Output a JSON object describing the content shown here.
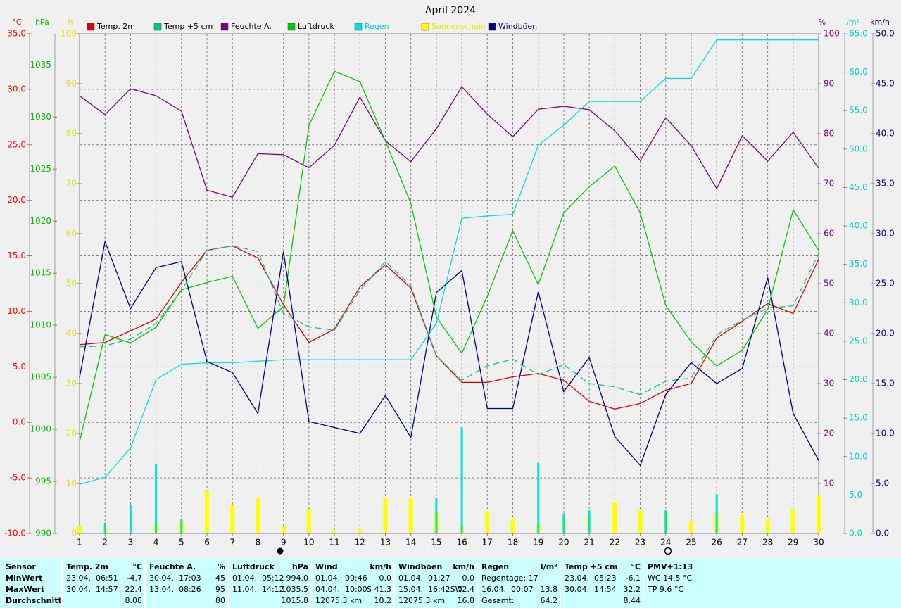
{
  "chart_data": {
    "type": "line",
    "title": "April 2024",
    "x": [
      1,
      2,
      3,
      4,
      5,
      6,
      7,
      8,
      9,
      10,
      11,
      12,
      13,
      14,
      15,
      16,
      17,
      18,
      19,
      20,
      21,
      22,
      23,
      24,
      25,
      26,
      27,
      28,
      29,
      30
    ],
    "xlim": [
      1,
      30
    ],
    "grid": true,
    "axes": [
      {
        "unit": "°C",
        "color": "#ff0000",
        "side": "left",
        "ylim": [
          -10,
          35
        ],
        "yticks": [
          {
            "value": -10,
            "label": "-10.0"
          },
          {
            "value": -5,
            "label": "-5.0"
          },
          {
            "value": 0,
            "label": "0.0"
          },
          {
            "value": 5,
            "label": "5.0"
          },
          {
            "value": 10,
            "label": "10.0"
          },
          {
            "value": 15,
            "label": "15.0"
          },
          {
            "value": 20,
            "label": "20.0"
          },
          {
            "value": 25,
            "label": "25.0"
          },
          {
            "value": 30,
            "label": "30.0"
          },
          {
            "value": 35,
            "label": "35.0"
          }
        ]
      },
      {
        "unit": "hPa",
        "color": "#00c000",
        "side": "left",
        "ylim": [
          990,
          1038
        ],
        "yticks": [
          990,
          995,
          1000,
          1005,
          1010,
          1015,
          1020,
          1025,
          1030,
          1035
        ]
      },
      {
        "unit": "h",
        "color": "#e0e000",
        "side": "left",
        "ylim": [
          0,
          100
        ],
        "yticks": [
          0,
          10,
          20,
          30,
          40,
          50,
          60,
          70,
          80,
          90,
          100
        ]
      },
      {
        "unit": "%",
        "color": "#800080",
        "side": "right",
        "ylim": [
          0,
          100
        ],
        "yticks": [
          10,
          20,
          30,
          40,
          50,
          60,
          70,
          80,
          90,
          100
        ]
      },
      {
        "unit": "l/m²",
        "color": "#00d0d0",
        "side": "right",
        "ylim": [
          0,
          65
        ],
        "yticks": [
          {
            "value": 0,
            "label": "0.0"
          },
          {
            "value": 5,
            "label": "5.0"
          },
          {
            "value": 10,
            "label": "10.0"
          },
          {
            "value": 15,
            "label": "15.0"
          },
          {
            "value": 20,
            "label": "20.0"
          },
          {
            "value": 25,
            "label": "25.0"
          },
          {
            "value": 30,
            "label": "30.0"
          },
          {
            "value": 35,
            "label": "35.0"
          },
          {
            "value": 40,
            "label": "40.0"
          },
          {
            "value": 45,
            "label": "45.0"
          },
          {
            "value": 50,
            "label": "50.0"
          },
          {
            "value": 55,
            "label": "55.0"
          },
          {
            "value": 60,
            "label": "60.0"
          },
          {
            "value": 65,
            "label": "65.0"
          }
        ]
      },
      {
        "unit": "km/h",
        "color": "#000080",
        "side": "right",
        "ylim": [
          0,
          50
        ],
        "yticks": [
          {
            "value": 0,
            "label": "0.0"
          },
          {
            "value": 5,
            "label": "5.0"
          },
          {
            "value": 10,
            "label": "10.0"
          },
          {
            "value": 15,
            "label": "15.0"
          },
          {
            "value": 20,
            "label": "20.0"
          },
          {
            "value": 25,
            "label": "25.0"
          },
          {
            "value": 30,
            "label": "30.0"
          },
          {
            "value": 35,
            "label": "35.0"
          },
          {
            "value": 40,
            "label": "40.0"
          },
          {
            "value": 45,
            "label": "45.0"
          },
          {
            "value": 50,
            "label": "50.0"
          }
        ]
      }
    ],
    "series": [
      {
        "name": "Temp. 2m",
        "color": "#dd0000",
        "text_color": "#000000",
        "axis": "°C",
        "mark": "line",
        "values": [
          7.0,
          7.2,
          8.25,
          9.3,
          12.6,
          15.5,
          15.9,
          14.8,
          10.6,
          7.2,
          8.4,
          12.2,
          14.2,
          12.1,
          6.0,
          3.6,
          3.6,
          4.1,
          4.4,
          3.8,
          1.9,
          1.2,
          1.7,
          2.9,
          3.5,
          7.6,
          9.1,
          10.7,
          9.8,
          14.7
        ]
      },
      {
        "name": "Temp +5 cm",
        "color": "#00c890",
        "text_color": "#000000",
        "axis": "°C",
        "mark": "line",
        "dashed": true,
        "values": [
          6.8,
          6.9,
          7.5,
          8.9,
          11.9,
          15.5,
          15.9,
          15.4,
          9.8,
          8.6,
          8.3,
          11.9,
          14.5,
          12.3,
          6.0,
          3.8,
          5.1,
          5.7,
          4.3,
          5.2,
          3.5,
          3.2,
          2.5,
          3.7,
          4.0,
          7.9,
          9.2,
          10.3,
          10.5,
          15.2
        ]
      },
      {
        "name": "Feuchte A.",
        "color": "#800080",
        "text_color": "#000000",
        "axis": "%",
        "mark": "line",
        "values": [
          87.6,
          83.8,
          89,
          87.6,
          84.5,
          68.7,
          67.3,
          76,
          75.8,
          73.2,
          77.7,
          87.3,
          78.6,
          74.4,
          81,
          89.4,
          83.9,
          79.4,
          84.9,
          85.5,
          84.8,
          80.6,
          74.6,
          83.2,
          77.6,
          69,
          79.6,
          74.5,
          80.3,
          73.1
        ]
      },
      {
        "name": "Luftdruck",
        "color": "#00cc00",
        "text_color": "#000000",
        "axis": "hPa",
        "mark": "line",
        "values": [
          998.8,
          1009.1,
          1008.3,
          1009.8,
          1013.4,
          1014.1,
          1014.7,
          1009.7,
          1011.8,
          1029.2,
          1034.4,
          1033.4,
          1027.7,
          1021.7,
          1010.8,
          1007.3,
          1012.8,
          1019.1,
          1013.9,
          1020.8,
          1023.3,
          1025.3,
          1020.8,
          1011.9,
          1008.4,
          1006.1,
          1007.6,
          1011.5,
          1021.1,
          1017.2
        ]
      },
      {
        "name": "Regen",
        "color": "#00e0e0",
        "text_color": "#00d0d0",
        "axis": "l/m²",
        "mark": "line",
        "values": [
          6.4,
          7.3,
          11.1,
          20,
          22,
          22.2,
          22.2,
          22.4,
          22.6,
          22.6,
          22.6,
          22.6,
          22.6,
          22.6,
          27.3,
          41,
          41.3,
          41.5,
          50.5,
          53.1,
          56.2,
          56.2,
          56.2,
          59.2,
          59.2,
          64.2,
          64.2,
          64.2,
          64.2,
          64.2
        ]
      },
      {
        "name": "Sonnenschein",
        "color": "#ffff00",
        "text_color": "#e8e800",
        "axis": "h",
        "mark": "bar",
        "values": [
          1.4,
          1.0,
          0,
          1.8,
          2.5,
          8.5,
          5.8,
          7.2,
          1.4,
          4.8,
          0.7,
          0.8,
          7.2,
          7.2,
          4.1,
          1.5,
          4.5,
          3.0,
          1.8,
          3.0,
          3.9,
          6.3,
          4.6,
          4.4,
          2.5,
          4.1,
          3.7,
          3.0,
          4.9,
          7.5
        ]
      },
      {
        "name": "Windböen",
        "color": "#000080",
        "text_color": "#000080",
        "axis": "km/h",
        "mark": "line",
        "values": [
          15.6,
          29.2,
          22.5,
          26.6,
          27.2,
          17.2,
          16.1,
          12.0,
          28.2,
          11.2,
          10.6,
          10.0,
          13.8,
          9.6,
          24.1,
          26.3,
          12.5,
          12.5,
          24.2,
          14.2,
          17.6,
          9.7,
          6.8,
          13.9,
          17.1,
          15.0,
          16.5,
          25.6,
          12.0,
          7.3
        ]
      },
      {
        "color": "#00e0e0",
        "axis": "l/m²",
        "mark": "bar",
        "values": [
          0,
          1.4,
          3.7,
          9.0,
          1.9,
          0,
          0,
          0,
          0,
          0,
          0,
          0,
          0,
          0,
          4.6,
          13.8,
          0,
          0,
          9.2,
          2.6,
          3.0,
          0,
          0,
          3.0,
          0,
          5.1,
          0,
          0,
          0,
          0
        ]
      }
    ]
  },
  "stats": {
    "sensor": [
      "Sensor",
      "MinWert",
      "MaxWert",
      "Durchschnitt"
    ],
    "columns": [
      {
        "title": "Temp. 2m",
        "unit": "°C",
        "rows": [
          {
            "left": "23.04.  06:51",
            "right": "-4.7"
          },
          {
            "left": "30.04.  14:57",
            "right": "22.4"
          },
          {
            "right": "8.08"
          }
        ]
      },
      {
        "title": "Feuchte A.",
        "unit": "%",
        "rows": [
          {
            "left": "30.04.  17:03",
            "right": "45"
          },
          {
            "left": "13.04.  08:26",
            "right": "95"
          },
          {
            "right": "80"
          }
        ]
      },
      {
        "title": "Luftdruck",
        "unit": "hPa",
        "rows": [
          {
            "left": "01.04.  05:12",
            "right": "994.0"
          },
          {
            "left": "11.04.  14:12",
            "right": "1035.5"
          },
          {
            "right": "1015.8"
          }
        ]
      },
      {
        "title": "Wind",
        "unit": "km/h",
        "rows": [
          {
            "left": "01.04.  00:46",
            "right": "0.0"
          },
          {
            "left": "04.04.  10:00",
            "right": "S 41.3"
          },
          {
            "left": "12075.3 km",
            "right": "10.2"
          }
        ]
      },
      {
        "title": "Windböen",
        "unit": "km/h",
        "rows": [
          {
            "left": "01.04.  01:27",
            "right": "0.0"
          },
          {
            "left": "15.04.  16:42SW",
            "right": "72.4"
          },
          {
            "left": "12075.3 km",
            "right": "16.8"
          }
        ]
      },
      {
        "title": "Regen",
        "unit": "l/m²",
        "rows": [
          {
            "left": "Regentage: 17"
          },
          {
            "left": "16.04.  00:07",
            "right": "13.8"
          },
          {
            "left": "Gesamt:",
            "right": "64.2"
          }
        ]
      },
      {
        "title": "Temp +5 cm",
        "unit": "°C",
        "rows": [
          {
            "left": "23.04.  05:23",
            "right": "-6.1"
          },
          {
            "left": "30.04.  14:54",
            "right": "32.2"
          },
          {
            "right": "8.44"
          }
        ]
      },
      {
        "title": "PMV+1:13",
        "rows": [
          {
            "left": "WC 14.5 °C"
          },
          {
            "left": "TP 9.6 °C"
          }
        ]
      }
    ]
  }
}
